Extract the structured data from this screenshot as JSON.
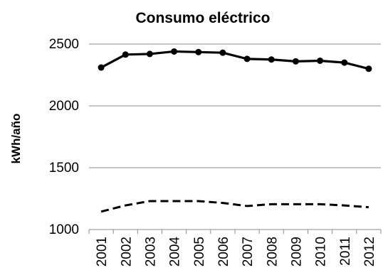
{
  "chart_data": {
    "type": "line",
    "title": "Consumo eléctrico",
    "xlabel": "",
    "ylabel": "kWh/año",
    "x": [
      "2001",
      "2002",
      "2003",
      "2004",
      "2005",
      "2006",
      "2007",
      "2008",
      "2009",
      "2010",
      "2011",
      "2012"
    ],
    "ylim": [
      1000,
      2500
    ],
    "yticks": [
      "1000",
      "1500",
      "2000",
      "2500"
    ],
    "grid": true,
    "legend": "none",
    "series": [
      {
        "style": "solid",
        "marker": "circle",
        "color": "#000000",
        "values": [
          2310,
          2415,
          2420,
          2440,
          2435,
          2430,
          2380,
          2375,
          2360,
          2365,
          2350,
          2300
        ]
      },
      {
        "style": "dashed",
        "marker": "none",
        "color": "#000000",
        "values": [
          1145,
          1195,
          1230,
          1230,
          1230,
          1215,
          1190,
          1205,
          1205,
          1205,
          1195,
          1180
        ]
      }
    ]
  }
}
